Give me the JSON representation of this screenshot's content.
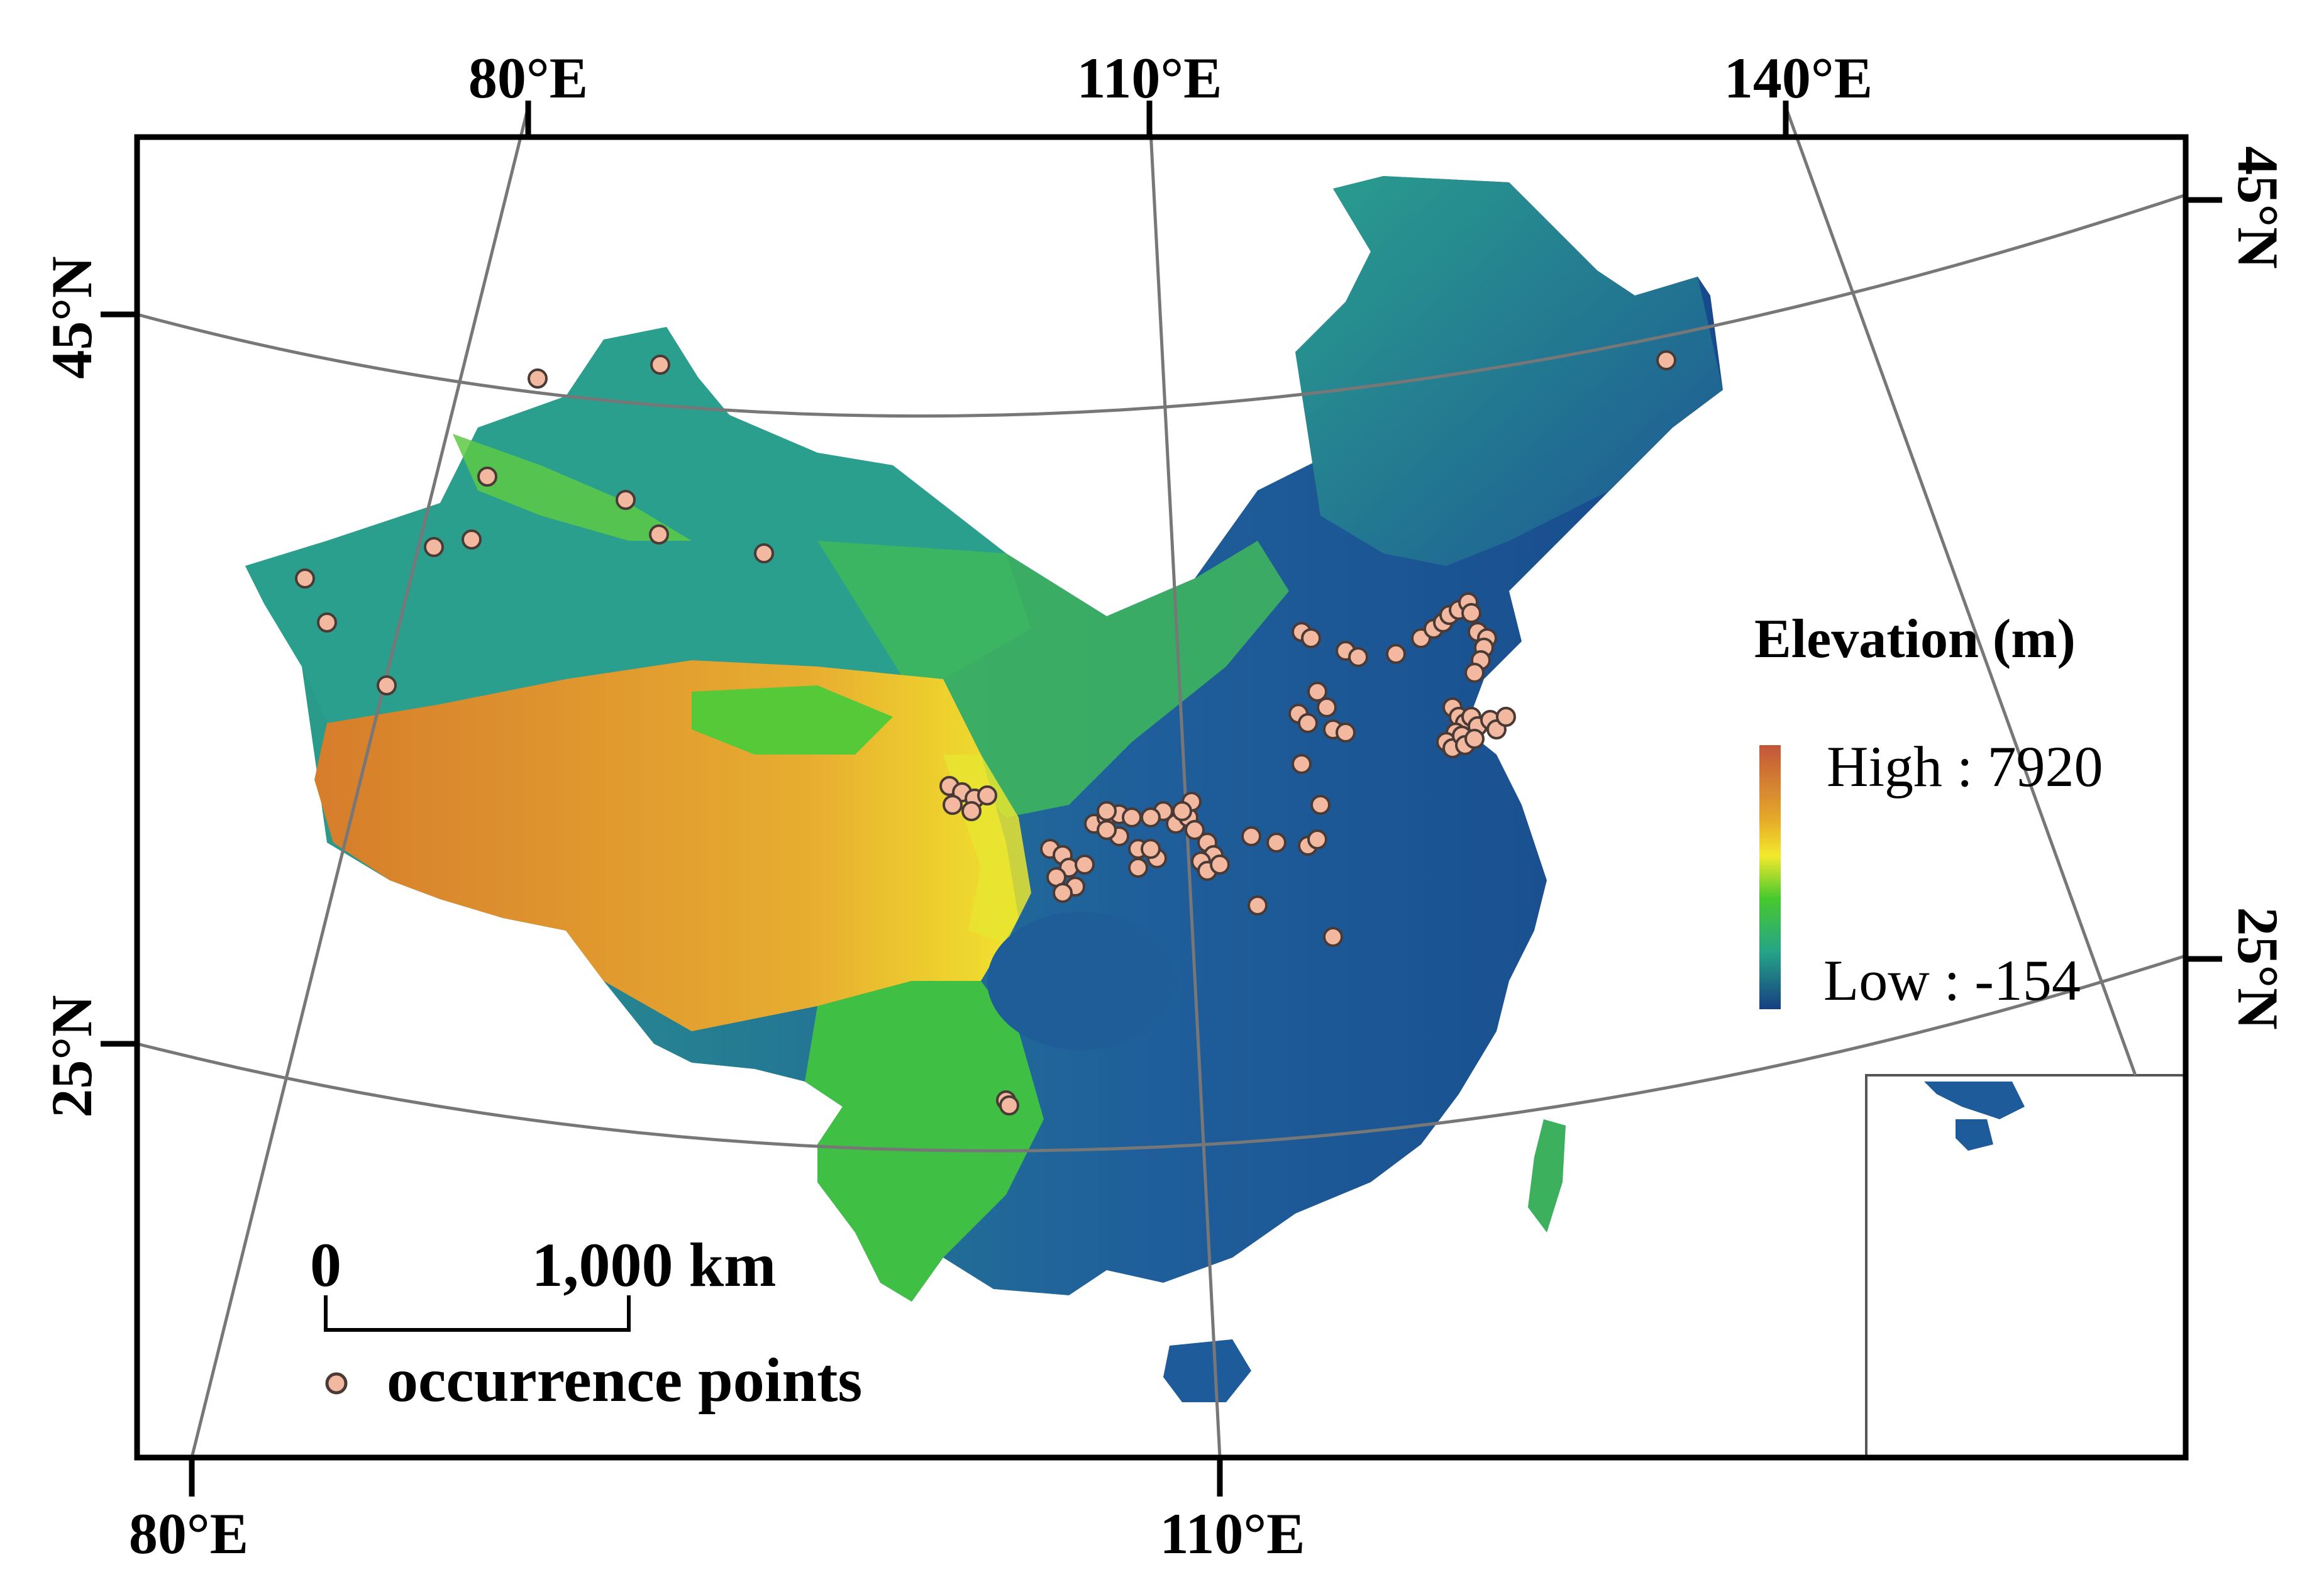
{
  "map": {
    "coords": {
      "top": [
        "80°E",
        "110°E",
        "140°E"
      ],
      "bottom": [
        "80°E",
        "110°E"
      ],
      "left": [
        "45°N",
        "25°N"
      ],
      "right": [
        "45°N",
        "25°N"
      ]
    },
    "legend": {
      "title": "Elevation (m)",
      "high_label": "High : 7920",
      "low_label": "Low : -154",
      "colors": [
        "#c2563a",
        "#e5a92a",
        "#f3e92c",
        "#47c92e",
        "#26a587",
        "#1e5b9a",
        "#163f82"
      ]
    },
    "scale_bar": {
      "start": "0",
      "end": "1,000 km"
    },
    "symbol": {
      "label": "occurrence points",
      "fill": "#f2b9a0",
      "stroke": "#4a3a36"
    },
    "colors": {
      "low": "#1e5b9a",
      "mid": "#2ba38a",
      "green": "#4bc73a",
      "high": "#d98e2e",
      "graticule": "#777777"
    }
  }
}
